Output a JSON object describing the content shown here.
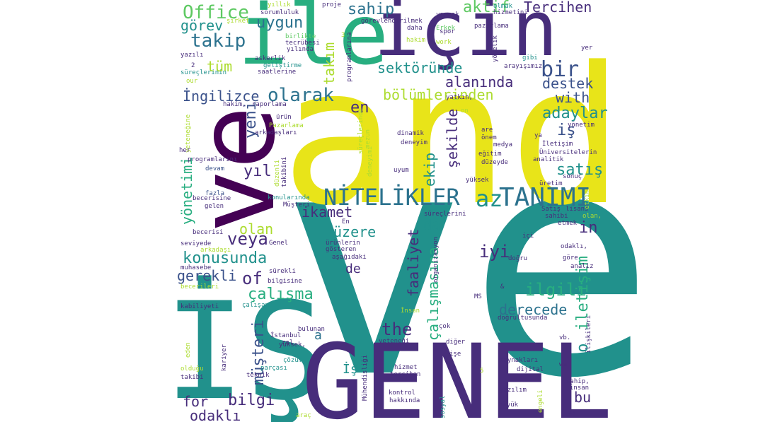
{
  "palette": {
    "purple": "#472d7b",
    "darkpurple": "#440154",
    "blue": "#3b528b",
    "teal": "#21918c",
    "cyan": "#2c728e",
    "green": "#28ae80",
    "lightgreen": "#5ec962",
    "lime": "#addc30",
    "yellow": "#e8e419"
  },
  "words": [
    {
      "text": "ve",
      "color": "teal"
    },
    {
      "text": "and",
      "color": "yellow"
    },
    {
      "text": "İŞ",
      "color": "teal"
    },
    {
      "text": "GENEL",
      "color": "purple"
    },
    {
      "text": "ve",
      "color": "darkpurple"
    },
    {
      "text": "için",
      "color": "purple"
    },
    {
      "text": "ile",
      "color": "green"
    },
    {
      "text": "NİTELİKLER",
      "color": "cyan"
    },
    {
      "text": "TANIMI",
      "color": "cyan"
    },
    {
      "text": "az",
      "color": "teal"
    },
    {
      "text": "Office",
      "color": "lightgreen"
    },
    {
      "text": "takip",
      "color": "cyan"
    },
    {
      "text": "görev",
      "color": "teal"
    },
    {
      "text": "uygun",
      "color": "cyan"
    },
    {
      "text": "sahip",
      "color": "cyan"
    },
    {
      "text": "aktif",
      "color": "lightgreen"
    },
    {
      "text": "Tercihen",
      "color": "purple"
    },
    {
      "text": "bir",
      "color": "blue"
    },
    {
      "text": "sektöründe",
      "color": "teal"
    },
    {
      "text": "tüm",
      "color": "lime"
    },
    {
      "text": "takım",
      "color": "lime"
    },
    {
      "text": "İngilizce",
      "color": "blue"
    },
    {
      "text": "olarak",
      "color": "cyan"
    },
    {
      "text": "alanında",
      "color": "purple"
    },
    {
      "text": "bölümlerinden",
      "color": "lime"
    },
    {
      "text": "destek",
      "color": "blue"
    },
    {
      "text": "with",
      "color": "blue"
    },
    {
      "text": "en",
      "color": "purple"
    },
    {
      "text": "adaylar",
      "color": "teal"
    },
    {
      "text": "iş",
      "color": "blue"
    },
    {
      "text": "yeni",
      "color": "blue"
    },
    {
      "text": "şekilde",
      "color": "purple"
    },
    {
      "text": "ekip",
      "color": "teal"
    },
    {
      "text": "yıl",
      "color": "purple"
    },
    {
      "text": "satış",
      "color": "teal"
    },
    {
      "text": "yönetimi",
      "color": "green"
    },
    {
      "text": "ikamet",
      "color": "purple"
    },
    {
      "text": "da",
      "color": "teal"
    },
    {
      "text": "üzere",
      "color": "teal"
    },
    {
      "text": "olan",
      "color": "lime"
    },
    {
      "text": "in",
      "color": "purple"
    },
    {
      "text": "veya",
      "color": "purple"
    },
    {
      "text": "konusunda",
      "color": "teal"
    },
    {
      "text": "iyi",
      "color": "purple"
    },
    {
      "text": "gerekli",
      "color": "blue"
    },
    {
      "text": "of",
      "color": "purple"
    },
    {
      "text": "çalışma",
      "color": "green"
    },
    {
      "text": "ilgili",
      "color": "green"
    },
    {
      "text": "derecede",
      "color": "cyan"
    },
    {
      "text": "faaliyet",
      "color": "purple"
    },
    {
      "text": "çalışmasına",
      "color": "green"
    },
    {
      "text": "the",
      "color": "purple"
    },
    {
      "text": "de",
      "color": "purple"
    },
    {
      "text": "iletişim",
      "color": "green"
    },
    {
      "text": "to",
      "color": "teal"
    },
    {
      "text": "a",
      "color": "cyan"
    },
    {
      "text": "müşteri",
      "color": "blue"
    },
    {
      "text": "bilgi",
      "color": "purple"
    },
    {
      "text": "for",
      "color": "purple"
    },
    {
      "text": "odaklı",
      "color": "purple"
    },
    {
      "text": "bu",
      "color": "purple"
    },
    {
      "text": "İş",
      "color": "teal"
    },
    {
      "text": "sorumluluk",
      "color": "purple"
    },
    {
      "text": "şirket",
      "color": "lime"
    },
    {
      "text": "birlikte",
      "color": "lightgreen"
    },
    {
      "text": "tecrübesi",
      "color": "purple"
    },
    {
      "text": "yılında",
      "color": "purple"
    },
    {
      "text": "yazılı",
      "color": "purple"
    },
    {
      "text": "askerlik",
      "color": "purple"
    },
    {
      "text": "geliştirme",
      "color": "teal"
    },
    {
      "text": "saatlerine",
      "color": "purple"
    },
    {
      "text": "süreçlerinin",
      "color": "teal"
    },
    {
      "text": "hakim,",
      "color": "purple"
    },
    {
      "text": "raporlama",
      "color": "purple"
    },
    {
      "text": "Pazarlama",
      "color": "lime"
    },
    {
      "text": "arkadaşları",
      "color": "purple"
    },
    {
      "text": "programlarını",
      "color": "purple"
    },
    {
      "text": "devam",
      "color": "blue"
    },
    {
      "text": "fazla",
      "color": "blue"
    },
    {
      "text": "becerisine",
      "color": "purple"
    },
    {
      "text": "gelen",
      "color": "purple"
    },
    {
      "text": "konularında",
      "color": "teal"
    },
    {
      "text": "Müşteri",
      "color": "purple"
    },
    {
      "text": "becerisi",
      "color": "purple"
    },
    {
      "text": "seviyede",
      "color": "purple"
    },
    {
      "text": "arkadaşı",
      "color": "lime"
    },
    {
      "text": "muhasebe",
      "color": "purple"
    },
    {
      "text": "sürekli",
      "color": "purple"
    },
    {
      "text": "bilgisine",
      "color": "purple"
    },
    {
      "text": "becerileri",
      "color": "lime"
    },
    {
      "text": "kabiliyeti",
      "color": "purple"
    },
    {
      "text": "çalışan",
      "color": "teal"
    },
    {
      "text": "İstanbul",
      "color": "purple"
    },
    {
      "text": "rol",
      "color": "purple"
    },
    {
      "text": "yüksek,",
      "color": "purple"
    },
    {
      "text": "olduğu",
      "color": "lime"
    },
    {
      "text": "takibi",
      "color": "purple"
    },
    {
      "text": "teknik",
      "color": "purple"
    },
    {
      "text": "parçası",
      "color": "teal"
    },
    {
      "text": "çözüm",
      "color": "teal"
    },
    {
      "text": "bulunan",
      "color": "purple"
    },
    {
      "text": "yeteneği",
      "color": "purple"
    },
    {
      "text": "görevlendirilmek",
      "color": "purple"
    },
    {
      "text": "proje",
      "color": "purple"
    },
    {
      "text": "yıllık",
      "color": "lime"
    },
    {
      "text": "daha",
      "color": "purple"
    },
    {
      "text": "hakim",
      "color": "lime"
    },
    {
      "text": "Erkek",
      "color": "lightgreen"
    },
    {
      "text": "work",
      "color": "lime"
    },
    {
      "text": "spor",
      "color": "purple"
    },
    {
      "text": "yapmak",
      "color": "purple"
    },
    {
      "text": "olmak",
      "color": "teal"
    },
    {
      "text": "hizmetini",
      "color": "purple"
    },
    {
      "text": "pazarlama",
      "color": "purple"
    },
    {
      "text": "gibi",
      "color": "teal"
    },
    {
      "text": "arayışımız",
      "color": "purple"
    },
    {
      "text": "yer",
      "color": "purple"
    },
    {
      "text": "yatkın,",
      "color": "purple"
    },
    {
      "text": "on",
      "color": "lime"
    },
    {
      "text": "ürün",
      "color": "purple"
    },
    {
      "text": "dinamik",
      "color": "purple"
    },
    {
      "text": "deneyim",
      "color": "purple"
    },
    {
      "text": "are",
      "color": "purple"
    },
    {
      "text": "önem",
      "color": "purple"
    },
    {
      "text": "medya",
      "color": "purple"
    },
    {
      "text": "eğitim",
      "color": "purple"
    },
    {
      "text": "düzeyde",
      "color": "purple"
    },
    {
      "text": "uyum",
      "color": "purple"
    },
    {
      "text": "yüksek",
      "color": "purple"
    },
    {
      "text": "ya",
      "color": "purple"
    },
    {
      "text": "yönetim",
      "color": "purple"
    },
    {
      "text": "İletişim",
      "color": "purple"
    },
    {
      "text": "Üniversitelerin",
      "color": "purple"
    },
    {
      "text": "analitik",
      "color": "purple"
    },
    {
      "text": "sonuç",
      "color": "purple"
    },
    {
      "text": "üretim",
      "color": "purple"
    },
    {
      "text": "Satış",
      "color": "purple"
    },
    {
      "text": "lisans",
      "color": "purple"
    },
    {
      "text": "sahibi",
      "color": "purple"
    },
    {
      "text": "olan,",
      "color": "lime"
    },
    {
      "text": "etmek",
      "color": "purple"
    },
    {
      "text": "süreçlerini",
      "color": "purple"
    },
    {
      "text": "En",
      "color": "purple"
    },
    {
      "text": "ürünlerin",
      "color": "purple"
    },
    {
      "text": "Genel",
      "color": "purple"
    },
    {
      "text": "aşağıdaki",
      "color": "purple"
    },
    {
      "text": "gösteren",
      "color": "purple"
    },
    {
      "text": "organizasyon",
      "color": "purple"
    },
    {
      "text": "içi",
      "color": "purple"
    },
    {
      "text": "doğru",
      "color": "purple"
    },
    {
      "text": "odaklı,",
      "color": "purple"
    },
    {
      "text": "göre",
      "color": "purple"
    },
    {
      "text": "analiz",
      "color": "purple"
    },
    {
      "text": "MS",
      "color": "purple"
    },
    {
      "text": "İnsan",
      "color": "lime"
    },
    {
      "text": "doğrultusunda",
      "color": "purple"
    },
    {
      "text": "çok",
      "color": "purple"
    },
    {
      "text": "diğer",
      "color": "purple"
    },
    {
      "text": "işe",
      "color": "purple"
    },
    {
      "text": "vb.",
      "color": "purple"
    },
    {
      "text": "Kaynakları",
      "color": "purple"
    },
    {
      "text": "we",
      "color": "purple"
    },
    {
      "text": "dijital",
      "color": "purple"
    },
    {
      "text": "hizmet",
      "color": "purple"
    },
    {
      "text": "tercihen",
      "color": "purple"
    },
    {
      "text": "sahip,",
      "color": "purple"
    },
    {
      "text": "insan",
      "color": "purple"
    },
    {
      "text": "yazılım",
      "color": "purple"
    },
    {
      "text": "kontrol",
      "color": "purple"
    },
    {
      "text": "hakkında",
      "color": "purple"
    },
    {
      "text": "büyük",
      "color": "purple"
    },
    {
      "text": "araç",
      "color": "lime"
    },
    {
      "text": "Mühendisliği",
      "color": "purple"
    },
    {
      "text": "sosyal",
      "color": "teal"
    },
    {
      "text": "engeli",
      "color": "lime"
    },
    {
      "text": "is",
      "color": "purple"
    },
    {
      "text": "kariyer",
      "color": "purple"
    },
    {
      "text": "eden",
      "color": "lime"
    },
    {
      "text": "süreçlerinde",
      "color": "lime"
    },
    {
      "text": "mezun",
      "color": "lime"
    },
    {
      "text": "deneyimi",
      "color": "lime"
    },
    {
      "text": "düzenli",
      "color": "lime"
    },
    {
      "text": "takibini",
      "color": "purple"
    },
    {
      "text": "programlarına",
      "color": "purple"
    },
    {
      "text": "yönelik",
      "color": "purple"
    },
    {
      "text": "yeteneğine",
      "color": "lime"
    },
    {
      "text": "ilişkileri",
      "color": "purple"
    },
    {
      "text": "etkin",
      "color": "lime"
    },
    {
      "text": "our",
      "color": "lime"
    },
    {
      "text": "her",
      "color": "purple"
    },
    {
      "text": "2",
      "color": "purple"
    },
    {
      "text": "3",
      "color": "lime"
    },
    {
      "text": "5",
      "color": "lime"
    },
    {
      "text": "&",
      "color": "purple"
    }
  ]
}
